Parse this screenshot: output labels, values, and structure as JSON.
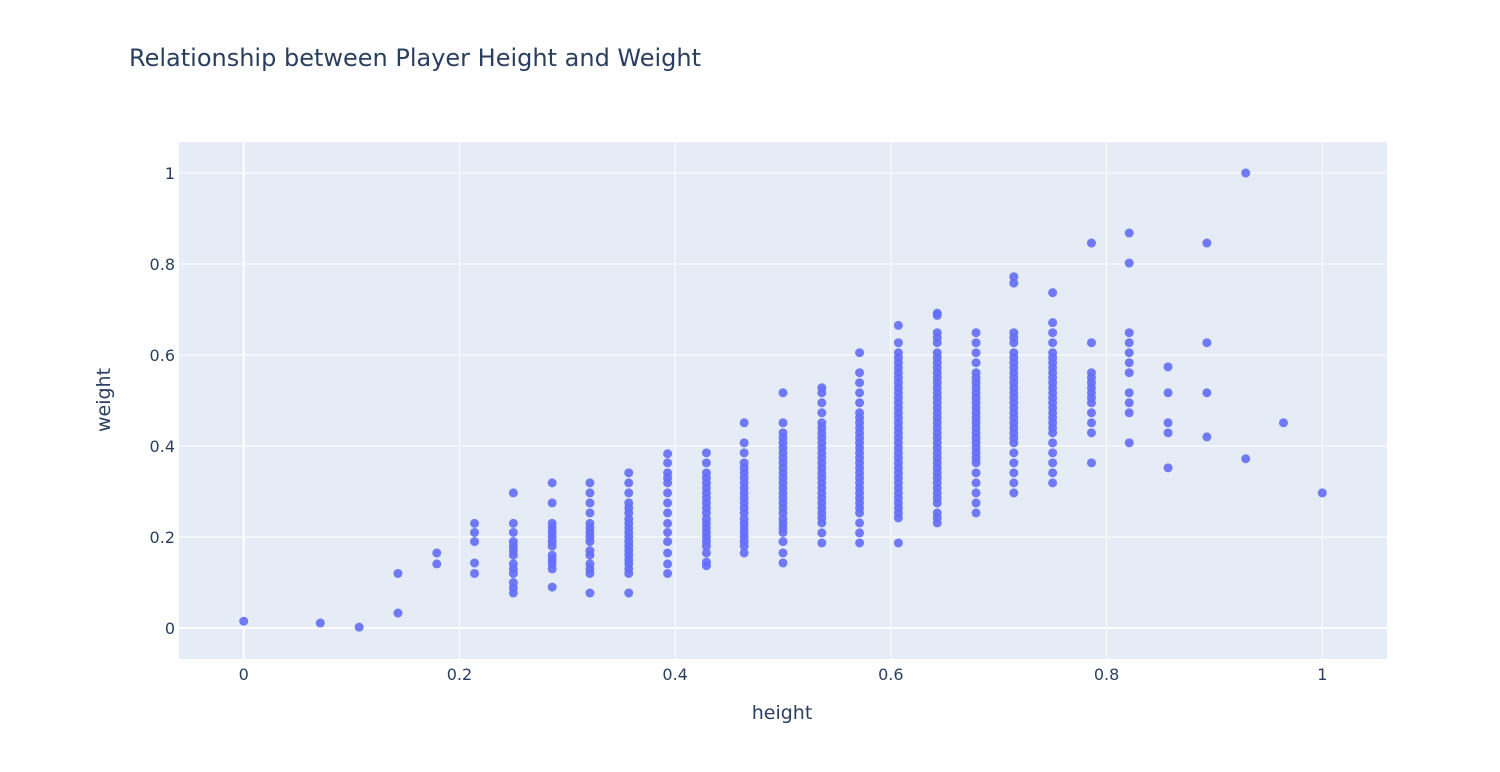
{
  "chart_data": {
    "type": "scatter",
    "title": "Relationship between Player Height and Weight",
    "xlabel": "height",
    "ylabel": "weight",
    "xlim": [
      -0.06,
      1.06
    ],
    "ylim": [
      -0.068,
      1.068
    ],
    "xticks": [
      0,
      0.2,
      0.4,
      0.6,
      0.8,
      1
    ],
    "yticks": [
      0,
      0.2,
      0.4,
      0.6,
      0.8,
      1
    ],
    "xtick_labels": [
      "0",
      "0.2",
      "0.4",
      "0.6",
      "0.8",
      "1"
    ],
    "ytick_labels": [
      "0",
      "0.2",
      "0.4",
      "0.6",
      "0.8",
      "1"
    ],
    "grid": true,
    "marker_color": "#636efa",
    "plot_bg_color": "#e5ecf6",
    "columns": [
      {
        "x": 0,
        "y": [
          0.015
        ]
      },
      {
        "x": 0.071,
        "y": [
          0.011
        ]
      },
      {
        "x": 0.107,
        "y": [
          0.002
        ]
      },
      {
        "x": 0.143,
        "y": [
          0.033,
          0.12
        ]
      },
      {
        "x": 0.179,
        "y": [
          0.141,
          0.165
        ]
      },
      {
        "x": 0.214,
        "y": [
          0.12,
          0.143,
          0.19,
          0.21,
          0.23
        ]
      },
      {
        "x": 0.25,
        "y": [
          0.077,
          0.088,
          0.1,
          0.12,
          0.13,
          0.141,
          0.16,
          0.17,
          0.18,
          0.19,
          0.21,
          0.23,
          0.297
        ]
      },
      {
        "x": 0.286,
        "y": [
          0.09,
          0.13,
          0.141,
          0.15,
          0.16,
          0.18,
          0.19,
          0.2,
          0.21,
          0.22,
          0.23,
          0.275,
          0.319
        ]
      },
      {
        "x": 0.321,
        "y": [
          0.077,
          0.12,
          0.13,
          0.141,
          0.16,
          0.17,
          0.19,
          0.2,
          0.21,
          0.22,
          0.23,
          0.253,
          0.275,
          0.297,
          0.319
        ]
      },
      {
        "x": 0.357,
        "y": [
          0.077,
          0.12,
          0.13,
          0.141,
          0.15,
          0.16,
          0.17,
          0.18,
          0.19,
          0.2,
          0.21,
          0.22,
          0.23,
          0.24,
          0.253,
          0.264,
          0.275,
          0.297,
          0.319,
          0.341
        ]
      },
      {
        "x": 0.393,
        "y": [
          0.12,
          0.141,
          0.165,
          0.19,
          0.21,
          0.23,
          0.253,
          0.275,
          0.297,
          0.319,
          0.33,
          0.341,
          0.363,
          0.383
        ]
      },
      {
        "x": 0.429,
        "y": [
          0.137,
          0.145,
          0.165,
          0.18,
          0.19,
          0.2,
          0.21,
          0.22,
          0.23,
          0.24,
          0.253,
          0.264,
          0.275,
          0.286,
          0.297,
          0.308,
          0.319,
          0.33,
          0.341,
          0.363,
          0.385
        ]
      },
      {
        "x": 0.464,
        "y": [
          0.165,
          0.18,
          0.19,
          0.2,
          0.21,
          0.22,
          0.23,
          0.24,
          0.253,
          0.264,
          0.275,
          0.286,
          0.297,
          0.308,
          0.319,
          0.33,
          0.341,
          0.352,
          0.363,
          0.385,
          0.407,
          0.451
        ]
      },
      {
        "x": 0.5,
        "y": [
          0.143,
          0.165,
          0.19,
          0.21,
          0.22,
          0.23,
          0.24,
          0.253,
          0.264,
          0.275,
          0.286,
          0.297,
          0.308,
          0.319,
          0.33,
          0.341,
          0.352,
          0.363,
          0.374,
          0.385,
          0.396,
          0.407,
          0.418,
          0.429,
          0.451,
          0.517
        ]
      },
      {
        "x": 0.536,
        "y": [
          0.187,
          0.209,
          0.231,
          0.242,
          0.253,
          0.264,
          0.275,
          0.286,
          0.297,
          0.308,
          0.319,
          0.33,
          0.341,
          0.352,
          0.363,
          0.374,
          0.385,
          0.396,
          0.407,
          0.418,
          0.429,
          0.44,
          0.451,
          0.473,
          0.495,
          0.517,
          0.528
        ]
      },
      {
        "x": 0.571,
        "y": [
          0.187,
          0.209,
          0.231,
          0.253,
          0.264,
          0.275,
          0.286,
          0.297,
          0.308,
          0.319,
          0.33,
          0.341,
          0.352,
          0.363,
          0.374,
          0.385,
          0.396,
          0.407,
          0.418,
          0.429,
          0.44,
          0.451,
          0.462,
          0.473,
          0.495,
          0.517,
          0.539,
          0.561,
          0.605
        ]
      },
      {
        "x": 0.607,
        "y": [
          0.187,
          0.242,
          0.253,
          0.264,
          0.275,
          0.286,
          0.297,
          0.308,
          0.319,
          0.33,
          0.341,
          0.352,
          0.363,
          0.374,
          0.385,
          0.396,
          0.407,
          0.418,
          0.429,
          0.44,
          0.451,
          0.462,
          0.473,
          0.484,
          0.495,
          0.506,
          0.517,
          0.528,
          0.539,
          0.55,
          0.561,
          0.572,
          0.583,
          0.594,
          0.605,
          0.627,
          0.665
        ]
      },
      {
        "x": 0.643,
        "y": [
          0.231,
          0.242,
          0.253,
          0.275,
          0.286,
          0.297,
          0.308,
          0.319,
          0.33,
          0.341,
          0.352,
          0.363,
          0.374,
          0.385,
          0.396,
          0.407,
          0.418,
          0.429,
          0.44,
          0.451,
          0.462,
          0.473,
          0.484,
          0.495,
          0.506,
          0.517,
          0.528,
          0.539,
          0.55,
          0.561,
          0.572,
          0.583,
          0.594,
          0.605,
          0.627,
          0.638,
          0.649,
          0.687,
          0.692
        ]
      },
      {
        "x": 0.679,
        "y": [
          0.253,
          0.275,
          0.297,
          0.319,
          0.341,
          0.363,
          0.374,
          0.385,
          0.396,
          0.407,
          0.418,
          0.429,
          0.44,
          0.451,
          0.462,
          0.473,
          0.484,
          0.495,
          0.506,
          0.517,
          0.528,
          0.539,
          0.55,
          0.561,
          0.583,
          0.605,
          0.627,
          0.649
        ]
      },
      {
        "x": 0.714,
        "y": [
          0.297,
          0.319,
          0.341,
          0.363,
          0.385,
          0.407,
          0.418,
          0.429,
          0.44,
          0.451,
          0.462,
          0.473,
          0.484,
          0.495,
          0.506,
          0.517,
          0.528,
          0.539,
          0.55,
          0.561,
          0.572,
          0.583,
          0.594,
          0.605,
          0.627,
          0.638,
          0.649,
          0.758,
          0.772
        ]
      },
      {
        "x": 0.75,
        "y": [
          0.319,
          0.341,
          0.363,
          0.385,
          0.407,
          0.429,
          0.44,
          0.451,
          0.462,
          0.473,
          0.484,
          0.495,
          0.506,
          0.517,
          0.528,
          0.539,
          0.55,
          0.561,
          0.572,
          0.583,
          0.594,
          0.605,
          0.627,
          0.649,
          0.671,
          0.737
        ]
      },
      {
        "x": 0.786,
        "y": [
          0.363,
          0.429,
          0.451,
          0.473,
          0.495,
          0.506,
          0.517,
          0.528,
          0.539,
          0.55,
          0.561,
          0.627,
          0.846
        ]
      },
      {
        "x": 0.821,
        "y": [
          0.407,
          0.473,
          0.495,
          0.517,
          0.561,
          0.583,
          0.605,
          0.627,
          0.649,
          0.802,
          0.868
        ]
      },
      {
        "x": 0.857,
        "y": [
          0.352,
          0.429,
          0.451,
          0.517,
          0.574
        ]
      },
      {
        "x": 0.893,
        "y": [
          0.42,
          0.517,
          0.627,
          0.846
        ]
      },
      {
        "x": 0.929,
        "y": [
          0.372,
          1.0
        ]
      },
      {
        "x": 0.964,
        "y": [
          0.451
        ]
      },
      {
        "x": 1.0,
        "y": [
          0.297
        ]
      }
    ]
  }
}
